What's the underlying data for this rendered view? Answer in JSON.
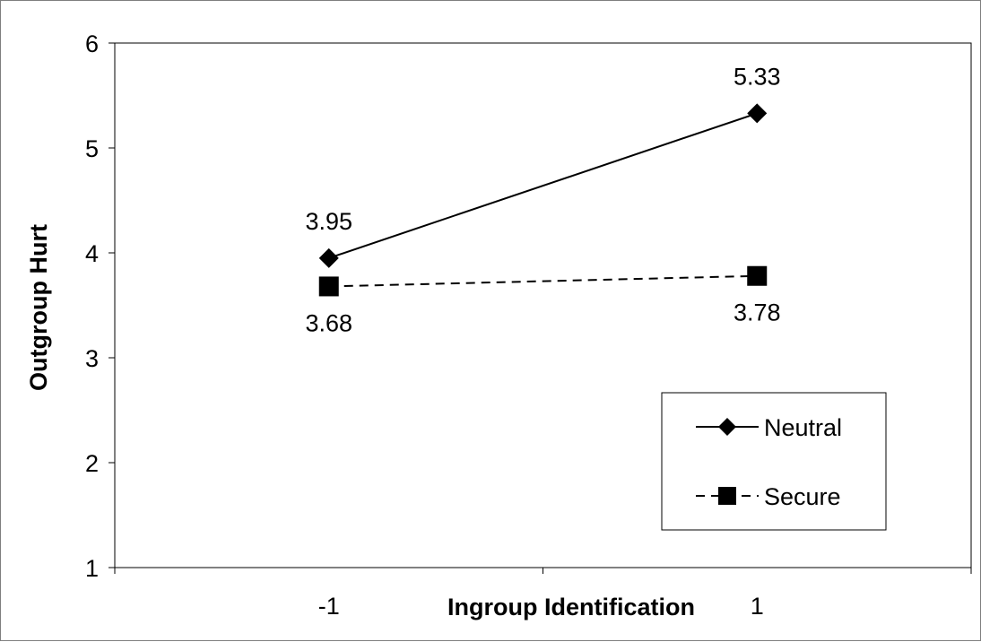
{
  "chart_data": {
    "type": "line",
    "title": "",
    "xlabel": "Ingroup Identification",
    "ylabel": "Outgroup Hurt",
    "categories": [
      "-1",
      "1"
    ],
    "ylim": [
      1,
      6
    ],
    "yticks": [
      "1",
      "2",
      "3",
      "4",
      "5",
      "6"
    ],
    "grid": false,
    "legend_position": "bottom-right",
    "series": [
      {
        "name": "Neutral",
        "values": [
          3.95,
          5.33
        ],
        "labels": [
          "3.95",
          "5.33"
        ],
        "marker": "diamond",
        "line_style": "solid",
        "color": "#000000"
      },
      {
        "name": "Secure",
        "values": [
          3.68,
          3.78
        ],
        "labels": [
          "3.68",
          "3.78"
        ],
        "marker": "square",
        "line_style": "dashed",
        "color": "#000000"
      }
    ]
  }
}
